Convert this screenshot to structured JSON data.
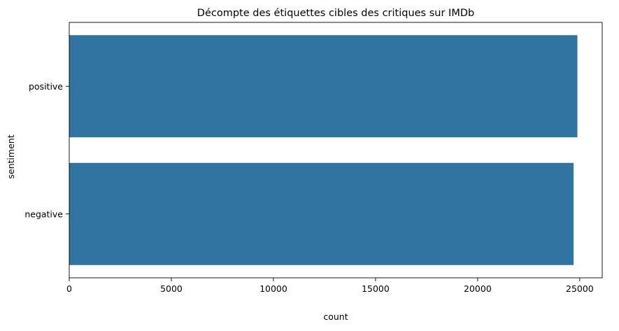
{
  "chart_data": {
    "type": "bar",
    "orientation": "horizontal",
    "title": "Décompte des étiquettes cibles des critiques sur IMDb",
    "xlabel": "count",
    "ylabel": "sentiment",
    "categories": [
      "positive",
      "negative"
    ],
    "values": [
      24884,
      24698
    ],
    "xlim": [
      0,
      26100
    ],
    "xticks": [
      0,
      5000,
      10000,
      15000,
      20000,
      25000
    ],
    "grid": false,
    "bar_color": "#3274a1"
  }
}
